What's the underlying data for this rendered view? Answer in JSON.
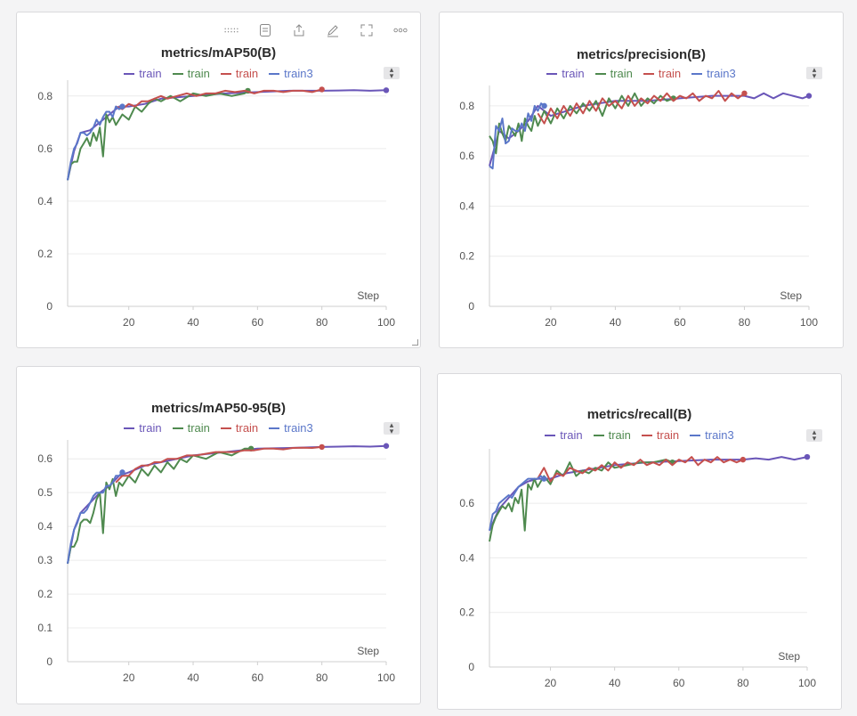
{
  "toolbar": {
    "icons": [
      "drag-handle-icon",
      "notes-icon",
      "share-icon",
      "edit-icon",
      "fullscreen-icon",
      "more-icon"
    ]
  },
  "series_colors": {
    "train_purple": "#6a56b8",
    "train_green": "#4f8a4f",
    "train_red": "#c5504e",
    "train3_blue": "#5b77c9"
  },
  "chart_data": [
    {
      "type": "line",
      "title": "metrics/mAP50(B)",
      "xlabel": "Step",
      "ylabel": "",
      "xlim": [
        1,
        100
      ],
      "ylim": [
        0,
        0.84
      ],
      "xticks": [
        "20",
        "40",
        "60",
        "80",
        "100"
      ],
      "yticks": [
        "0",
        "0.2",
        "0.4",
        "0.6",
        "0.8"
      ],
      "ytick_values": [
        0,
        0.2,
        0.4,
        0.6,
        0.8
      ],
      "legend_position": "top-center",
      "legend": [
        "train",
        "train",
        "train",
        "train3"
      ],
      "series": [
        {
          "name": "train",
          "color": "#6a56b8",
          "x": [
            1,
            3,
            5,
            8,
            11,
            14,
            17,
            20,
            25,
            30,
            40,
            50,
            60,
            70,
            80,
            90,
            95,
            100
          ],
          "y": [
            0.48,
            0.59,
            0.66,
            0.67,
            0.7,
            0.73,
            0.76,
            0.76,
            0.77,
            0.79,
            0.8,
            0.81,
            0.815,
            0.82,
            0.82,
            0.822,
            0.82,
            0.822
          ]
        },
        {
          "name": "train",
          "color": "#4f8a4f",
          "x": [
            1,
            2,
            3,
            4,
            5,
            6,
            7,
            8,
            9,
            10,
            11,
            12,
            13,
            14,
            15,
            16,
            18,
            20,
            22,
            24,
            26,
            28,
            30,
            33,
            36,
            40,
            44,
            48,
            52,
            56,
            57
          ],
          "y": [
            0.48,
            0.54,
            0.55,
            0.55,
            0.6,
            0.62,
            0.64,
            0.61,
            0.66,
            0.63,
            0.68,
            0.57,
            0.73,
            0.7,
            0.72,
            0.69,
            0.73,
            0.71,
            0.76,
            0.74,
            0.77,
            0.79,
            0.78,
            0.8,
            0.78,
            0.81,
            0.8,
            0.81,
            0.8,
            0.81,
            0.82
          ]
        },
        {
          "name": "train",
          "color": "#c5504e",
          "x": [
            16,
            18,
            20,
            22,
            24,
            26,
            28,
            30,
            32,
            35,
            38,
            41,
            44,
            47,
            50,
            53,
            56,
            59,
            62,
            65,
            68,
            71,
            74,
            77,
            80
          ],
          "y": [
            0.76,
            0.75,
            0.77,
            0.76,
            0.78,
            0.78,
            0.79,
            0.8,
            0.79,
            0.8,
            0.81,
            0.8,
            0.81,
            0.81,
            0.82,
            0.815,
            0.82,
            0.81,
            0.82,
            0.82,
            0.815,
            0.82,
            0.82,
            0.815,
            0.825
          ]
        },
        {
          "name": "train3",
          "color": "#5b77c9",
          "x": [
            1,
            2,
            3,
            4,
            5,
            6,
            7,
            8,
            9,
            10,
            11,
            12,
            13,
            14,
            15,
            16,
            17,
            18
          ],
          "y": [
            0.48,
            0.55,
            0.6,
            0.62,
            0.66,
            0.66,
            0.65,
            0.66,
            0.68,
            0.71,
            0.69,
            0.72,
            0.74,
            0.74,
            0.72,
            0.76,
            0.75,
            0.76
          ]
        }
      ]
    },
    {
      "type": "line",
      "title": "metrics/precision(B)",
      "xlabel": "Step",
      "ylabel": "",
      "xlim": [
        1,
        100
      ],
      "ylim": [
        0,
        0.86
      ],
      "xticks": [
        "20",
        "40",
        "60",
        "80",
        "100"
      ],
      "yticks": [
        "0",
        "0.2",
        "0.4",
        "0.6",
        "0.8"
      ],
      "ytick_values": [
        0,
        0.2,
        0.4,
        0.6,
        0.8
      ],
      "legend_position": "top-center",
      "legend": [
        "train",
        "train",
        "train",
        "train3"
      ],
      "series": [
        {
          "name": "train",
          "color": "#6a56b8",
          "x": [
            1,
            4,
            7,
            10,
            13,
            16,
            20,
            25,
            30,
            40,
            50,
            60,
            70,
            80,
            83,
            86,
            89,
            92,
            95,
            98,
            100
          ],
          "y": [
            0.56,
            0.7,
            0.67,
            0.7,
            0.74,
            0.8,
            0.76,
            0.78,
            0.8,
            0.82,
            0.82,
            0.83,
            0.84,
            0.84,
            0.83,
            0.85,
            0.83,
            0.85,
            0.84,
            0.83,
            0.84
          ]
        },
        {
          "name": "train",
          "color": "#4f8a4f",
          "x": [
            1,
            2,
            3,
            4,
            5,
            6,
            7,
            8,
            9,
            10,
            11,
            12,
            13,
            14,
            15,
            16,
            18,
            20,
            22,
            24,
            26,
            28,
            30,
            32,
            34,
            36,
            38,
            40,
            42,
            44,
            46,
            48,
            50,
            52,
            54,
            56,
            58
          ],
          "y": [
            0.68,
            0.66,
            0.61,
            0.73,
            0.69,
            0.66,
            0.72,
            0.7,
            0.68,
            0.73,
            0.66,
            0.75,
            0.72,
            0.7,
            0.76,
            0.72,
            0.78,
            0.73,
            0.79,
            0.75,
            0.8,
            0.77,
            0.81,
            0.78,
            0.82,
            0.76,
            0.83,
            0.79,
            0.84,
            0.8,
            0.85,
            0.8,
            0.83,
            0.81,
            0.84,
            0.82,
            0.83
          ]
        },
        {
          "name": "train",
          "color": "#c5504e",
          "x": [
            16,
            18,
            20,
            22,
            24,
            26,
            28,
            30,
            32,
            34,
            36,
            38,
            40,
            42,
            44,
            46,
            48,
            50,
            52,
            54,
            56,
            58,
            60,
            62,
            64,
            66,
            68,
            70,
            72,
            74,
            76,
            78,
            80
          ],
          "y": [
            0.77,
            0.73,
            0.79,
            0.75,
            0.8,
            0.76,
            0.81,
            0.77,
            0.82,
            0.78,
            0.83,
            0.8,
            0.82,
            0.79,
            0.84,
            0.8,
            0.83,
            0.81,
            0.84,
            0.82,
            0.85,
            0.82,
            0.84,
            0.83,
            0.85,
            0.82,
            0.84,
            0.83,
            0.86,
            0.82,
            0.85,
            0.83,
            0.85
          ]
        },
        {
          "name": "train3",
          "color": "#5b77c9",
          "x": [
            1,
            2,
            3,
            4,
            5,
            6,
            7,
            8,
            9,
            10,
            11,
            12,
            13,
            14,
            15,
            16,
            17,
            18
          ],
          "y": [
            0.56,
            0.55,
            0.72,
            0.7,
            0.75,
            0.65,
            0.66,
            0.71,
            0.7,
            0.7,
            0.73,
            0.7,
            0.77,
            0.74,
            0.8,
            0.78,
            0.81,
            0.8
          ]
        }
      ]
    },
    {
      "type": "line",
      "title": "metrics/mAP50-95(B)",
      "xlabel": "Step",
      "ylabel": "",
      "xlim": [
        1,
        100
      ],
      "ylim": [
        0,
        0.64
      ],
      "xticks": [
        "20",
        "40",
        "60",
        "80",
        "100"
      ],
      "yticks": [
        "0",
        "0.1",
        "0.2",
        "0.3",
        "0.4",
        "0.5",
        "0.6"
      ],
      "ytick_values": [
        0,
        0.1,
        0.2,
        0.3,
        0.4,
        0.5,
        0.6
      ],
      "legend_position": "top-center",
      "legend": [
        "train",
        "train",
        "train",
        "train3"
      ],
      "series": [
        {
          "name": "train",
          "color": "#6a56b8",
          "x": [
            1,
            3,
            5,
            8,
            11,
            14,
            17,
            20,
            25,
            30,
            40,
            50,
            60,
            70,
            80,
            90,
            95,
            100
          ],
          "y": [
            0.29,
            0.39,
            0.44,
            0.47,
            0.5,
            0.52,
            0.55,
            0.56,
            0.58,
            0.59,
            0.61,
            0.62,
            0.63,
            0.632,
            0.635,
            0.637,
            0.636,
            0.638
          ]
        },
        {
          "name": "train",
          "color": "#4f8a4f",
          "x": [
            1,
            2,
            3,
            4,
            5,
            6,
            7,
            8,
            9,
            10,
            11,
            12,
            13,
            14,
            15,
            16,
            17,
            18,
            20,
            22,
            24,
            26,
            28,
            30,
            32,
            34,
            36,
            38,
            40,
            44,
            48,
            52,
            56,
            58
          ],
          "y": [
            0.29,
            0.34,
            0.34,
            0.36,
            0.41,
            0.42,
            0.42,
            0.41,
            0.44,
            0.48,
            0.5,
            0.38,
            0.53,
            0.51,
            0.54,
            0.49,
            0.53,
            0.52,
            0.55,
            0.53,
            0.57,
            0.55,
            0.58,
            0.56,
            0.59,
            0.57,
            0.6,
            0.59,
            0.61,
            0.6,
            0.62,
            0.61,
            0.63,
            0.63
          ]
        },
        {
          "name": "train",
          "color": "#c5504e",
          "x": [
            16,
            18,
            20,
            22,
            24,
            26,
            28,
            30,
            32,
            35,
            38,
            41,
            44,
            47,
            50,
            53,
            56,
            59,
            62,
            65,
            68,
            71,
            74,
            77,
            80
          ],
          "y": [
            0.53,
            0.55,
            0.55,
            0.57,
            0.58,
            0.58,
            0.59,
            0.59,
            0.6,
            0.6,
            0.61,
            0.61,
            0.615,
            0.62,
            0.62,
            0.62,
            0.625,
            0.625,
            0.63,
            0.63,
            0.628,
            0.632,
            0.633,
            0.632,
            0.635
          ]
        },
        {
          "name": "train3",
          "color": "#5b77c9",
          "x": [
            1,
            2,
            3,
            4,
            5,
            6,
            7,
            8,
            9,
            10,
            11,
            12,
            13,
            14,
            15,
            16,
            17,
            18
          ],
          "y": [
            0.29,
            0.35,
            0.39,
            0.41,
            0.44,
            0.44,
            0.45,
            0.47,
            0.49,
            0.5,
            0.5,
            0.5,
            0.52,
            0.52,
            0.53,
            0.55,
            0.55,
            0.56
          ]
        }
      ]
    },
    {
      "type": "line",
      "title": "metrics/recall(B)",
      "xlabel": "Step",
      "ylabel": "",
      "xlim": [
        1,
        100
      ],
      "ylim": [
        0,
        0.78
      ],
      "xticks": [
        "20",
        "40",
        "60",
        "80",
        "100"
      ],
      "yticks": [
        "0",
        "0.2",
        "0.4",
        "0.6"
      ],
      "ytick_values": [
        0,
        0.2,
        0.4,
        0.6
      ],
      "legend_position": "top-center",
      "legend": [
        "train",
        "train",
        "train",
        "train3"
      ],
      "series": [
        {
          "name": "train",
          "color": "#6a56b8",
          "x": [
            1,
            4,
            7,
            10,
            13,
            16,
            20,
            25,
            30,
            40,
            50,
            60,
            70,
            80,
            84,
            88,
            92,
            96,
            100
          ],
          "y": [
            0.5,
            0.58,
            0.62,
            0.66,
            0.68,
            0.69,
            0.69,
            0.71,
            0.72,
            0.74,
            0.75,
            0.755,
            0.76,
            0.76,
            0.765,
            0.76,
            0.77,
            0.76,
            0.77
          ]
        },
        {
          "name": "train",
          "color": "#4f8a4f",
          "x": [
            1,
            2,
            3,
            4,
            5,
            6,
            7,
            8,
            9,
            10,
            11,
            12,
            13,
            14,
            15,
            16,
            18,
            20,
            22,
            24,
            26,
            28,
            30,
            32,
            34,
            36,
            38,
            40,
            44,
            48,
            52,
            56,
            58
          ],
          "y": [
            0.46,
            0.52,
            0.55,
            0.57,
            0.59,
            0.58,
            0.6,
            0.57,
            0.62,
            0.6,
            0.65,
            0.5,
            0.67,
            0.65,
            0.69,
            0.66,
            0.7,
            0.67,
            0.72,
            0.7,
            0.75,
            0.7,
            0.72,
            0.71,
            0.73,
            0.72,
            0.75,
            0.73,
            0.74,
            0.75,
            0.75,
            0.76,
            0.75
          ]
        },
        {
          "name": "train",
          "color": "#c5504e",
          "x": [
            16,
            18,
            20,
            22,
            24,
            26,
            28,
            30,
            32,
            34,
            36,
            38,
            40,
            42,
            44,
            46,
            48,
            50,
            52,
            54,
            56,
            58,
            60,
            62,
            64,
            66,
            68,
            70,
            72,
            74,
            76,
            78,
            80
          ],
          "y": [
            0.69,
            0.73,
            0.68,
            0.71,
            0.7,
            0.73,
            0.72,
            0.71,
            0.73,
            0.72,
            0.74,
            0.72,
            0.75,
            0.73,
            0.75,
            0.74,
            0.76,
            0.74,
            0.75,
            0.74,
            0.76,
            0.74,
            0.76,
            0.75,
            0.77,
            0.74,
            0.76,
            0.75,
            0.77,
            0.75,
            0.76,
            0.75,
            0.76
          ]
        },
        {
          "name": "train3",
          "color": "#5b77c9",
          "x": [
            1,
            2,
            3,
            4,
            5,
            6,
            7,
            8,
            9,
            10,
            11,
            12,
            13,
            14,
            15,
            16,
            17,
            18
          ],
          "y": [
            0.5,
            0.56,
            0.57,
            0.6,
            0.61,
            0.62,
            0.63,
            0.62,
            0.64,
            0.66,
            0.67,
            0.68,
            0.69,
            0.69,
            0.69,
            0.69,
            0.7,
            0.69
          ]
        }
      ]
    }
  ]
}
